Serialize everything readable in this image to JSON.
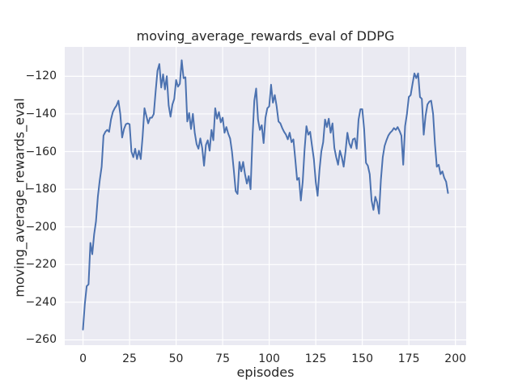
{
  "colors": {
    "line": "#4C72B0",
    "axes_bg": "#EAEAF2",
    "grid": "#FFFFFF",
    "text": "#262626",
    "figure_bg": "#FFFFFF"
  },
  "chart_data": {
    "type": "line",
    "title": "moving_average_rewards_eval of DDPG",
    "xlabel": "episodes",
    "ylabel": "moving_average_rewards_eval",
    "x_ticks": [
      0,
      25,
      50,
      75,
      100,
      125,
      150,
      175,
      200
    ],
    "y_ticks": [
      -120,
      -140,
      -160,
      -180,
      -200,
      -220,
      -240,
      -260
    ],
    "xlim": [
      -9.8,
      205.8
    ],
    "ylim": [
      -262.8,
      -104.4
    ],
    "grid": true,
    "legend_position": "none",
    "series": [
      {
        "name": "moving_average_rewards_eval",
        "x_start": 0,
        "x_step": 1,
        "y": [
          -254.5,
          -241,
          -231.5,
          -230.5,
          -208.5,
          -214.5,
          -204,
          -197,
          -184,
          -175,
          -168,
          -151.5,
          -149.5,
          -148.5,
          -149.5,
          -143,
          -139,
          -137,
          -135.5,
          -133,
          -140,
          -152.5,
          -148,
          -145.5,
          -145,
          -145.5,
          -160,
          -163,
          -158.5,
          -164,
          -159.5,
          -164,
          -152,
          -137,
          -141,
          -145,
          -142,
          -142,
          -140,
          -128,
          -117,
          -113.5,
          -126,
          -119,
          -127,
          -120,
          -135.5,
          -141.5,
          -135,
          -132,
          -122,
          -125.5,
          -124,
          -111.5,
          -121,
          -120.5,
          -144,
          -139.5,
          -148,
          -140,
          -150,
          -156,
          -158.5,
          -153,
          -158,
          -167.5,
          -156.5,
          -154,
          -159.5,
          -148.5,
          -154,
          -137,
          -142.5,
          -139,
          -144.5,
          -142,
          -150,
          -147,
          -150.5,
          -153,
          -160,
          -170,
          -181,
          -182.5,
          -165.5,
          -170.5,
          -165.5,
          -172,
          -177,
          -173,
          -180,
          -153,
          -133,
          -126.5,
          -143,
          -148.5,
          -146,
          -155.5,
          -142,
          -137,
          -136,
          -124.5,
          -134,
          -130,
          -136,
          -144,
          -145,
          -147.5,
          -149.5,
          -151,
          -153.5,
          -150,
          -155,
          -153.5,
          -164,
          -175,
          -174,
          -186,
          -176,
          -159,
          -146.5,
          -151,
          -149.5,
          -157,
          -164,
          -176,
          -183.5,
          -170,
          -160,
          -155,
          -143,
          -147,
          -142.5,
          -150,
          -145,
          -158,
          -163,
          -167,
          -159.5,
          -163,
          -168,
          -160,
          -150,
          -155.5,
          -158,
          -153.5,
          -153,
          -158.5,
          -143,
          -137.5,
          -137.5,
          -148,
          -166,
          -167.5,
          -172,
          -186,
          -191,
          -184,
          -187,
          -193,
          -175,
          -163,
          -157,
          -154,
          -151.5,
          -150,
          -149,
          -147.5,
          -148.5,
          -147,
          -149,
          -151.5,
          -167,
          -146.5,
          -140,
          -131,
          -130,
          -124,
          -118.5,
          -121,
          -118.5,
          -131,
          -132,
          -151,
          -141,
          -135,
          -133.5,
          -133,
          -140,
          -156,
          -168,
          -167,
          -172,
          -170.5,
          -174,
          -176,
          -182
        ]
      }
    ]
  }
}
